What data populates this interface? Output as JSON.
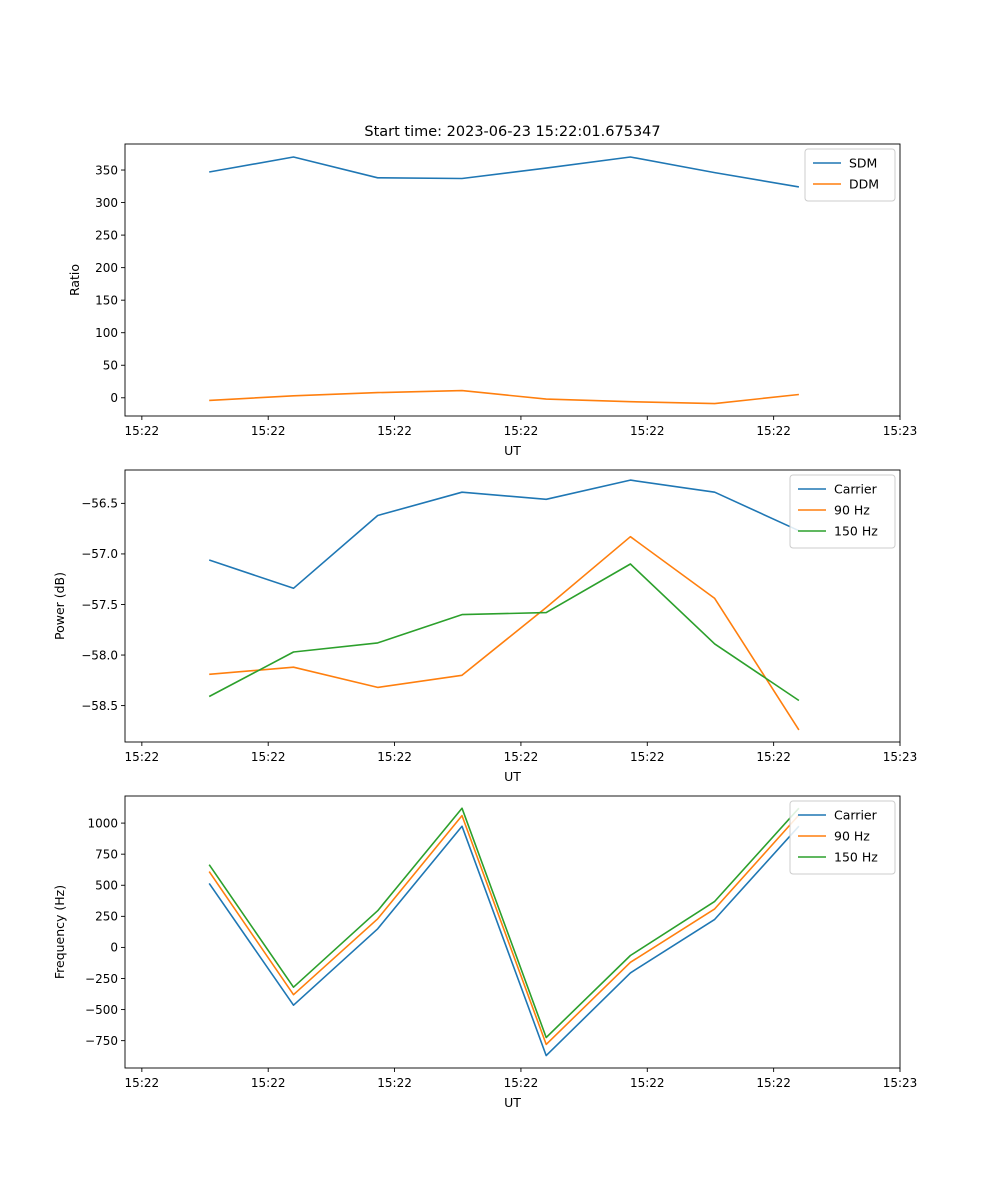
{
  "figure_title": "Start time: 2023-06-23 15:22:01.675347",
  "chart_data": [
    {
      "type": "line",
      "title": "Start time: 2023-06-23 15:22:01.675347",
      "xlabel": "UT",
      "ylabel": "Ratio",
      "x": [
        1,
        2,
        3,
        4,
        5,
        6,
        7,
        8
      ],
      "xlim": [
        0,
        9.2
      ],
      "xticks": [
        0.2,
        1.7,
        3.2,
        4.7,
        6.2,
        7.7,
        9.2
      ],
      "xtick_labels": [
        "15:22",
        "15:22",
        "15:22",
        "15:22",
        "15:22",
        "15:22",
        "15:23"
      ],
      "ylim": [
        -28,
        390
      ],
      "yticks": [
        0,
        50,
        100,
        150,
        200,
        250,
        300,
        350
      ],
      "ytick_labels": [
        "0",
        "50",
        "100",
        "150",
        "200",
        "250",
        "300",
        "350"
      ],
      "grid": false,
      "legend": "upper-right",
      "series": [
        {
          "name": "SDM",
          "color": "#1f77b4",
          "values": [
            347,
            370,
            338,
            337,
            353,
            370,
            346,
            324
          ]
        },
        {
          "name": "DDM",
          "color": "#ff7f0e",
          "values": [
            -4,
            3,
            8,
            11,
            -2,
            -6,
            -9,
            5
          ]
        }
      ]
    },
    {
      "type": "line",
      "title": "",
      "xlabel": "UT",
      "ylabel": "Power (dB)",
      "x": [
        1,
        2,
        3,
        4,
        5,
        6,
        7,
        8
      ],
      "xlim": [
        0,
        9.2
      ],
      "xticks": [
        0.2,
        1.7,
        3.2,
        4.7,
        6.2,
        7.7,
        9.2
      ],
      "xtick_labels": [
        "15:22",
        "15:22",
        "15:22",
        "15:22",
        "15:22",
        "15:22",
        "15:23"
      ],
      "ylim": [
        -58.86,
        -56.17
      ],
      "yticks": [
        -58.5,
        -58.0,
        -57.5,
        -57.0,
        -56.5
      ],
      "ytick_labels": [
        "−58.5",
        "−58.0",
        "−57.5",
        "−57.0",
        "−56.5"
      ],
      "grid": false,
      "legend": "upper-right",
      "series": [
        {
          "name": "Carrier",
          "color": "#1f77b4",
          "values": [
            -57.06,
            -57.34,
            -56.62,
            -56.39,
            -56.46,
            -56.27,
            -56.39,
            -56.77
          ]
        },
        {
          "name": "90 Hz",
          "color": "#ff7f0e",
          "values": [
            -58.19,
            -58.12,
            -58.32,
            -58.2,
            -57.53,
            -56.83,
            -57.44,
            -58.74
          ]
        },
        {
          "name": "150 Hz",
          "color": "#2ca02c",
          "values": [
            -58.41,
            -57.97,
            -57.88,
            -57.6,
            -57.58,
            -57.1,
            -57.89,
            -58.45
          ]
        }
      ]
    },
    {
      "type": "line",
      "title": "",
      "xlabel": "UT",
      "ylabel": "Frequency (Hz)",
      "x": [
        1,
        2,
        3,
        4,
        5,
        6,
        7,
        8
      ],
      "xlim": [
        0,
        9.2
      ],
      "xticks": [
        0.2,
        1.7,
        3.2,
        4.7,
        6.2,
        7.7,
        9.2
      ],
      "xtick_labels": [
        "15:22",
        "15:22",
        "15:22",
        "15:22",
        "15:22",
        "15:22",
        "15:23"
      ],
      "ylim": [
        -970,
        1218
      ],
      "yticks": [
        -750,
        -500,
        -250,
        0,
        250,
        500,
        750,
        1000
      ],
      "ytick_labels": [
        "−750",
        "−500",
        "−250",
        "0",
        "250",
        "500",
        "750",
        "1000"
      ],
      "grid": false,
      "legend": "upper-right",
      "series": [
        {
          "name": "Carrier",
          "color": "#1f77b4",
          "values": [
            515,
            -465,
            150,
            975,
            -870,
            -205,
            225,
            975
          ]
        },
        {
          "name": "90 Hz",
          "color": "#ff7f0e",
          "values": [
            610,
            -380,
            230,
            1060,
            -780,
            -120,
            310,
            1065
          ]
        },
        {
          "name": "150 Hz",
          "color": "#2ca02c",
          "values": [
            665,
            -320,
            295,
            1120,
            -725,
            -65,
            370,
            1120
          ]
        }
      ]
    }
  ]
}
